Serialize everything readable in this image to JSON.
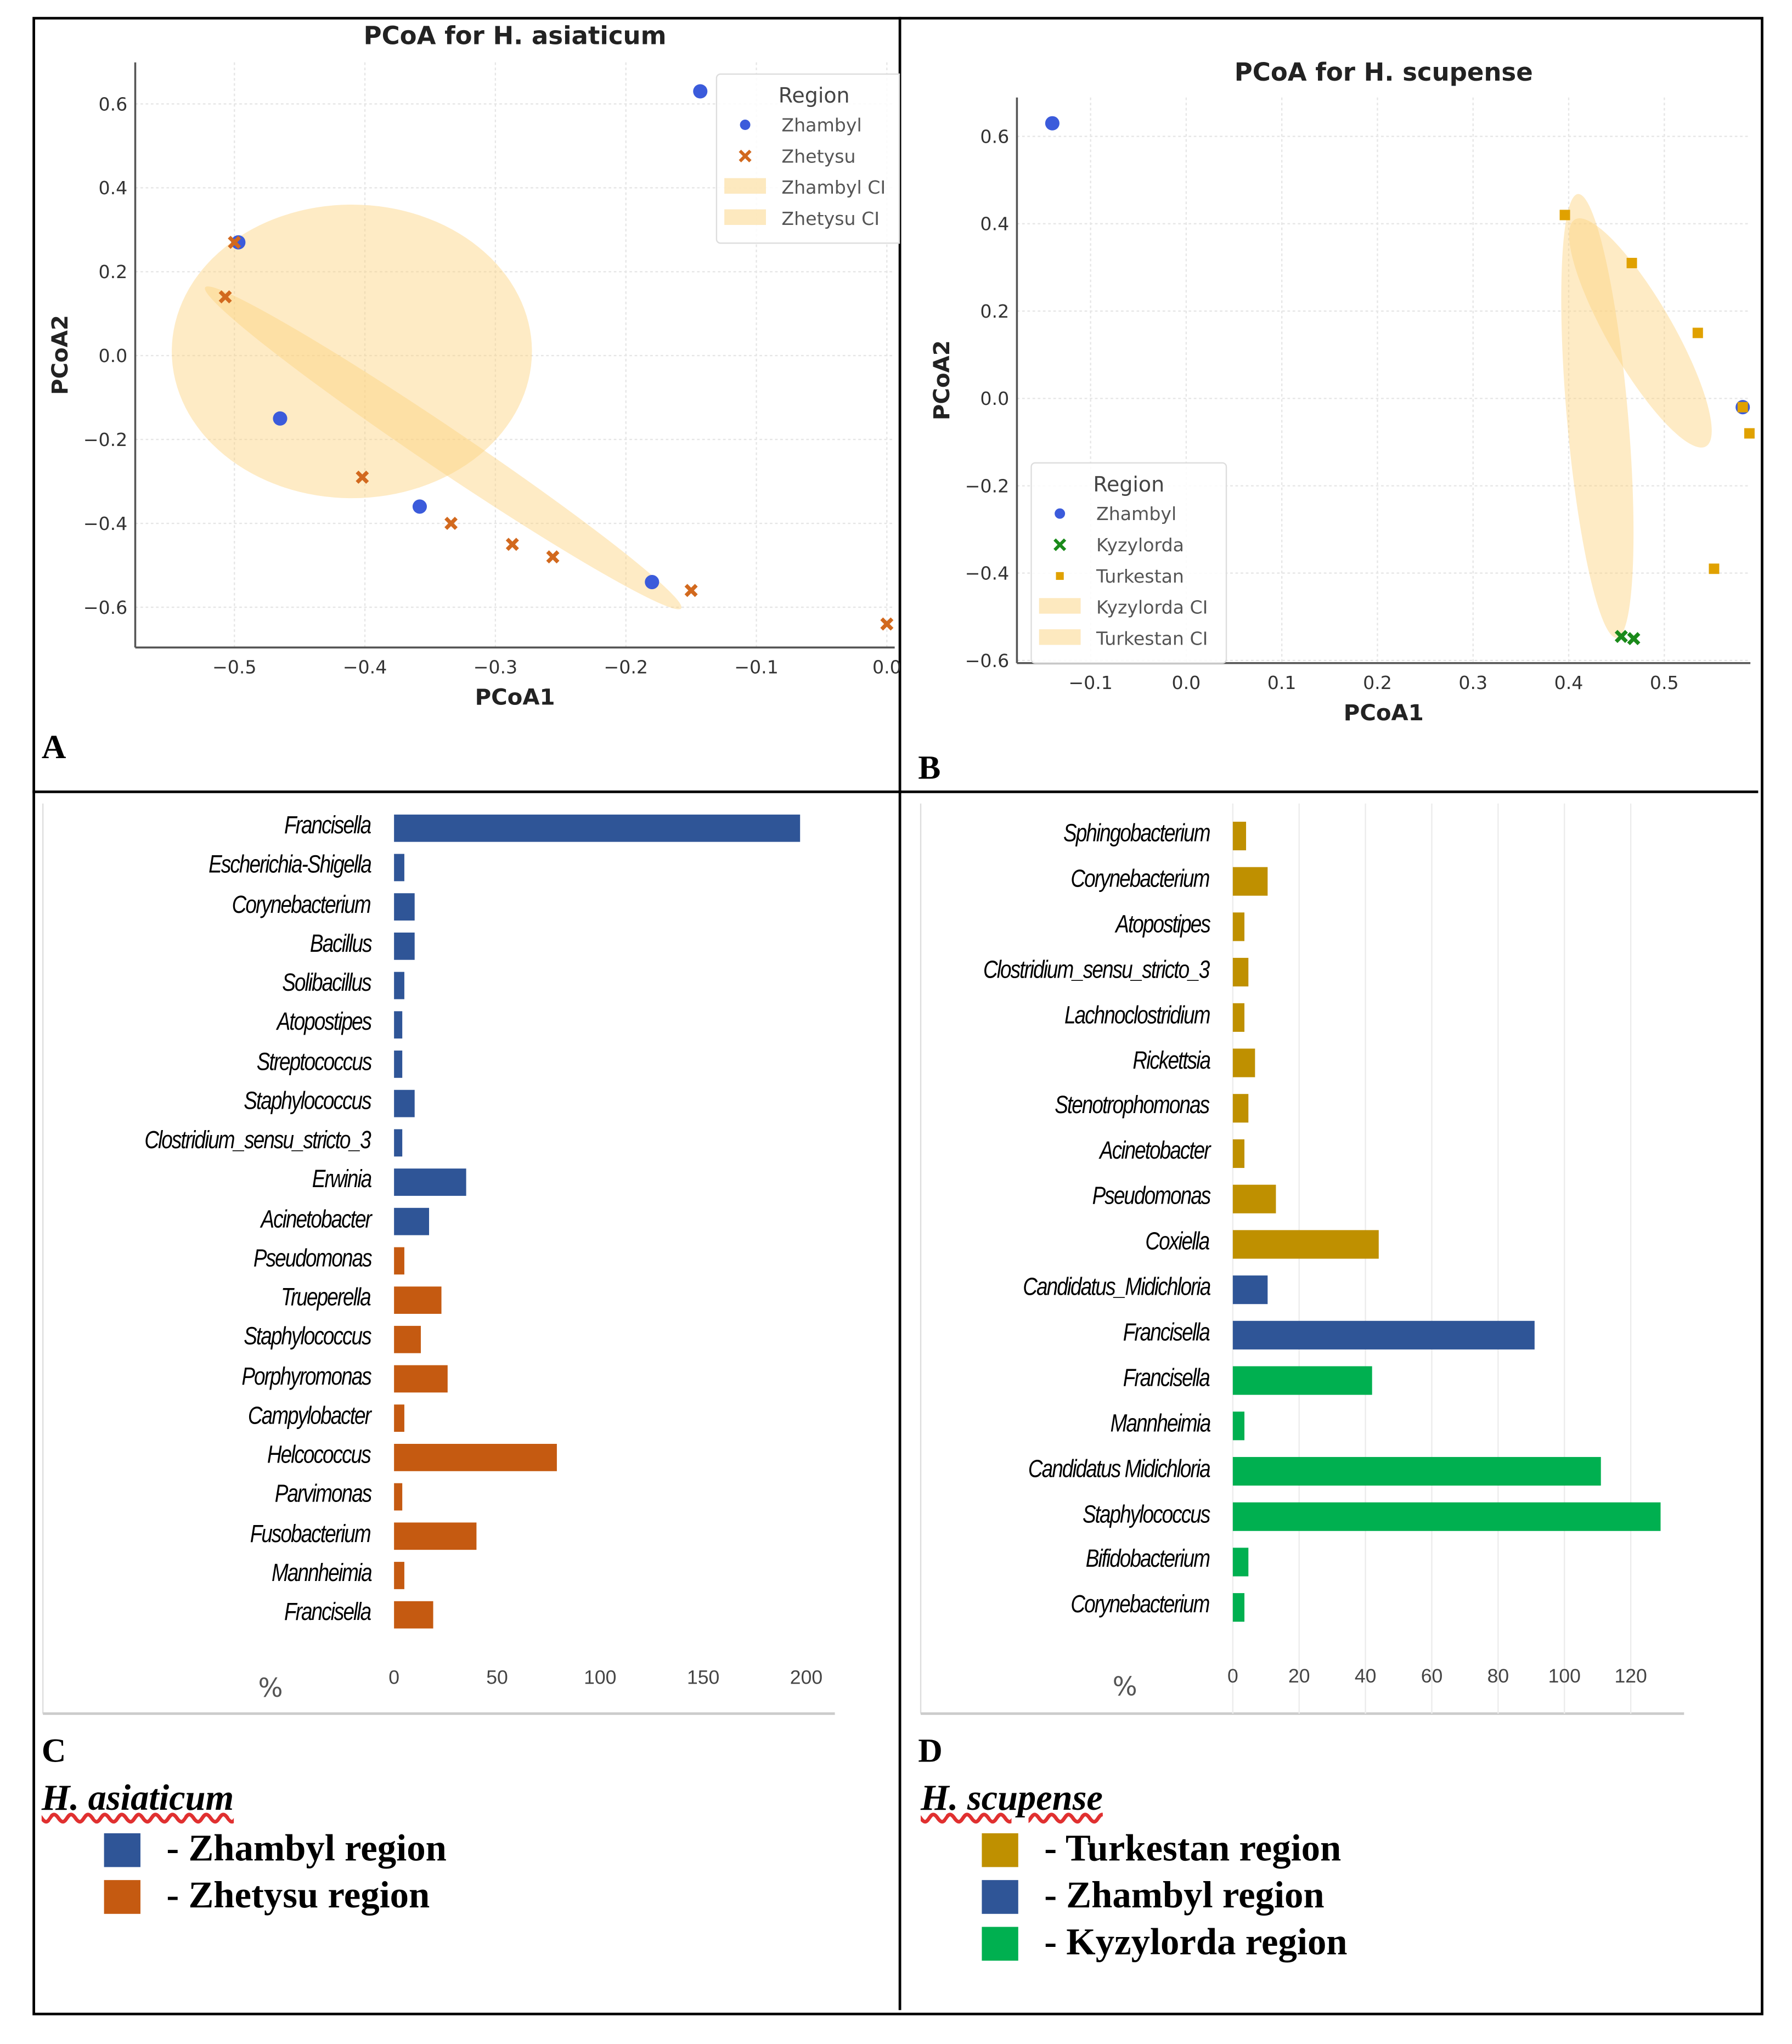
{
  "panel_labels": {
    "a": "A",
    "b": "B",
    "c": "C",
    "d": "D"
  },
  "chart_data": [
    {
      "id": "A",
      "type": "scatter",
      "title": "PCoA for H. asiaticum",
      "xlabel": "PCoA1",
      "ylabel": "PCoA2",
      "xlim": [
        -0.576,
        0.006
      ],
      "ylim": [
        -0.696,
        0.699
      ],
      "grid": true,
      "xticks": [
        -0.5,
        -0.4,
        -0.3,
        -0.2,
        -0.1,
        0.0
      ],
      "xtick_labels": [
        "−0.5",
        "−0.4",
        "−0.3",
        "−0.2",
        "−0.1",
        "0.0"
      ],
      "yticks": [
        0.6,
        0.4,
        0.2,
        0.0,
        -0.2,
        -0.4,
        -0.6
      ],
      "ytick_labels": [
        "0.6",
        "0.4",
        "0.2",
        "0.0",
        "−0.2",
        "−0.4",
        "−0.6"
      ],
      "legend": {
        "title": "Region",
        "placement": "top-right",
        "entries": [
          "Zhambyl",
          "Zhetysu",
          "Zhambyl CI",
          "Zhetysu CI"
        ]
      },
      "series": [
        {
          "name": "Zhambyl",
          "marker": "circle",
          "color": "#3b5bdb",
          "points": [
            [
              -0.143,
              0.63
            ],
            [
              -0.497,
              0.27
            ],
            [
              -0.465,
              -0.15
            ],
            [
              -0.358,
              -0.36
            ],
            [
              -0.18,
              -0.54
            ]
          ]
        },
        {
          "name": "Zhetysu",
          "marker": "x",
          "color": "#d2691e",
          "points": [
            [
              -0.5,
              0.27
            ],
            [
              -0.507,
              0.14
            ],
            [
              -0.402,
              -0.29
            ],
            [
              -0.334,
              -0.4
            ],
            [
              -0.287,
              -0.45
            ],
            [
              -0.256,
              -0.48
            ],
            [
              -0.15,
              -0.56
            ],
            [
              0.0,
              -0.64
            ]
          ]
        }
      ],
      "ci_color": "#fcd37f"
    },
    {
      "id": "B",
      "type": "scatter",
      "title": "PCoA for H. scupense",
      "xlabel": "PCoA1",
      "ylabel": "PCoA2",
      "xlim": [
        -0.177,
        0.59
      ],
      "ylim": [
        -0.606,
        0.689
      ],
      "grid": true,
      "xticks": [
        -0.1,
        0.0,
        0.1,
        0.2,
        0.3,
        0.4,
        0.5
      ],
      "xtick_labels": [
        "−0.1",
        "0.0",
        "0.1",
        "0.2",
        "0.3",
        "0.4",
        "0.5"
      ],
      "yticks": [
        0.6,
        0.4,
        0.2,
        0.0,
        -0.2,
        -0.4,
        -0.6
      ],
      "ytick_labels": [
        "0.6",
        "0.4",
        "0.2",
        "0.0",
        "−0.2",
        "−0.4",
        "−0.6"
      ],
      "legend": {
        "title": "Region",
        "placement": "lower-left",
        "entries": [
          "Zhambyl",
          "Kyzylorda",
          "Turkestan",
          "Kyzylorda CI",
          "Turkestan CI"
        ]
      },
      "series": [
        {
          "name": "Zhambyl",
          "marker": "circle",
          "color": "#3b5bdb",
          "points": [
            [
              -0.14,
              0.63
            ],
            [
              0.582,
              -0.02
            ]
          ]
        },
        {
          "name": "Kyzylorda",
          "marker": "x",
          "color": "#1a8a1a",
          "points": [
            [
              0.455,
              -0.545
            ],
            [
              0.468,
              -0.55
            ]
          ]
        },
        {
          "name": "Turkestan",
          "marker": "square",
          "color": "#e0a100",
          "points": [
            [
              0.396,
              0.42
            ],
            [
              0.466,
              0.31
            ],
            [
              0.535,
              0.15
            ],
            [
              0.582,
              -0.02
            ],
            [
              0.589,
              -0.08
            ],
            [
              0.552,
              -0.39
            ]
          ]
        }
      ],
      "ci_color": "#fcd37f"
    },
    {
      "id": "C",
      "type": "bar",
      "orientation": "horizontal",
      "xlabel": "%",
      "xlim": [
        0,
        210
      ],
      "xticks": [
        0,
        50,
        100,
        150,
        200
      ],
      "categories": [
        "Francisella",
        "Escherichia-Shigella",
        "Corynebacterium",
        "Bacillus",
        "Solibacillus",
        "Atopostipes",
        "Streptococcus",
        "Staphylococcus",
        "Clostridium_sensu_stricto_3",
        "Erwinia",
        "Acinetobacter",
        "Pseudomonas",
        "Trueperella",
        "Staphylococcus",
        "Porphyromonas",
        "Campylobacter",
        "Helcococcus",
        "Parvimonas",
        "Fusobacterium",
        "Mannheimia",
        "Francisella"
      ],
      "values": [
        197,
        5,
        10,
        10,
        5,
        4,
        4,
        10,
        4,
        35,
        17,
        5,
        23,
        13,
        26,
        5,
        79,
        4,
        40,
        5,
        19
      ],
      "groups": [
        "Zhambyl",
        "Zhambyl",
        "Zhambyl",
        "Zhambyl",
        "Zhambyl",
        "Zhambyl",
        "Zhambyl",
        "Zhambyl",
        "Zhambyl",
        "Zhambyl",
        "Zhambyl",
        "Zhetysu",
        "Zhetysu",
        "Zhetysu",
        "Zhetysu",
        "Zhetysu",
        "Zhetysu",
        "Zhetysu",
        "Zhetysu",
        "Zhetysu",
        "Zhetysu"
      ],
      "colors": {
        "Zhambyl": "#2f5597",
        "Zhetysu": "#c55a11"
      }
    },
    {
      "id": "D",
      "type": "bar",
      "orientation": "horizontal",
      "xlabel": "%",
      "xlim": [
        0,
        135
      ],
      "xticks": [
        0,
        20,
        40,
        60,
        80,
        100,
        120
      ],
      "categories": [
        "Sphingobacterium",
        "Corynebacterium",
        "Atopostipes",
        "Clostridium_sensu_stricto_3",
        "Lachnoclostridium",
        "Rickettsia",
        "Stenotrophomonas",
        "Acinetobacter",
        "Pseudomonas",
        "Coxiella",
        "Candidatus_Midichloria",
        "Francisella",
        "Francisella",
        "Mannheimia",
        "Candidatus Midichloria",
        "Staphylococcus",
        "Bifidobacterium",
        "Corynebacterium"
      ],
      "values": [
        4,
        10.5,
        3.5,
        4.7,
        3.5,
        6.7,
        4.7,
        3.5,
        13,
        44,
        10.5,
        91,
        42,
        3.5,
        111,
        129,
        4.7,
        3.5
      ],
      "groups": [
        "Turkestan",
        "Turkestan",
        "Turkestan",
        "Turkestan",
        "Turkestan",
        "Turkestan",
        "Turkestan",
        "Turkestan",
        "Turkestan",
        "Turkestan",
        "Zhambyl",
        "Zhambyl",
        "Kyzylorda",
        "Kyzylorda",
        "Kyzylorda",
        "Kyzylorda",
        "Kyzylorda",
        "Kyzylorda"
      ],
      "colors": {
        "Turkestan": "#bf9000",
        "Zhambyl": "#2f5597",
        "Kyzylorda": "#00b050"
      }
    }
  ],
  "legend_c": {
    "species": "H. asiaticum",
    "items": [
      {
        "label": "- Zhambyl region",
        "color": "#2f5597"
      },
      {
        "label": "- Zhetysu region",
        "color": "#c55a11"
      }
    ]
  },
  "legend_d": {
    "species": "H. scupense",
    "items": [
      {
        "label": "- Turkestan region",
        "color": "#bf9000"
      },
      {
        "label": "- Zhambyl region",
        "color": "#2f5597"
      },
      {
        "label": "-  Kyzylorda region",
        "color": "#00b050"
      }
    ]
  }
}
